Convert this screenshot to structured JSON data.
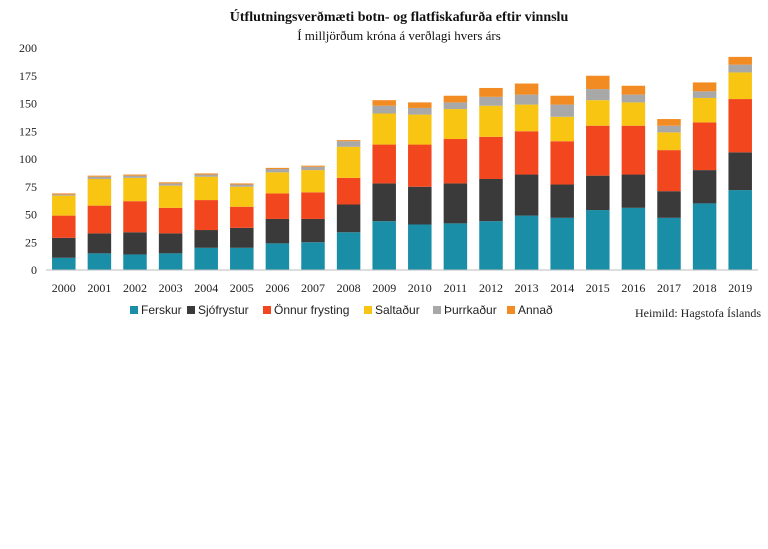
{
  "chart_data": {
    "type": "bar",
    "stacked": true,
    "title": "Útflutningsverðmæti botn- og flatfiskafurða eftir vinnslu",
    "subtitle": "Í milljörðum króna á verðlagi hvers árs",
    "source": "Heimild:  Hagstofa Íslands",
    "ylim": [
      0,
      200
    ],
    "yticks": [
      0,
      25,
      50,
      75,
      100,
      125,
      150,
      175,
      200
    ],
    "grid": false,
    "legend_position": "bottom",
    "categories": [
      "2000",
      "2001",
      "2002",
      "2003",
      "2004",
      "2005",
      "2006",
      "2007",
      "2008",
      "2009",
      "2010",
      "2011",
      "2012",
      "2013",
      "2014",
      "2015",
      "2016",
      "2017",
      "2018",
      "2019"
    ],
    "series": [
      {
        "name": "Ferskur",
        "color": "#1a8ea6",
        "values": [
          11,
          15,
          14,
          15,
          20,
          20,
          24,
          25,
          34,
          44,
          41,
          42,
          44,
          49,
          47,
          54,
          56,
          47,
          60,
          72
        ]
      },
      {
        "name": "Sjófrystur",
        "color": "#3a3a3a",
        "values": [
          18,
          18,
          20,
          18,
          16,
          18,
          22,
          21,
          25,
          34,
          34,
          36,
          38,
          37,
          30,
          31,
          30,
          24,
          30,
          34
        ]
      },
      {
        "name": "Önnur frysting",
        "color": "#f2461e",
        "values": [
          20,
          25,
          28,
          23,
          27,
          19,
          23,
          24,
          24,
          35,
          38,
          40,
          38,
          39,
          39,
          45,
          44,
          37,
          43,
          48
        ]
      },
      {
        "name": "Saltaður",
        "color": "#f8c513",
        "values": [
          18,
          24,
          21,
          20,
          21,
          18,
          19,
          20,
          28,
          28,
          27,
          27,
          28,
          24,
          22,
          23,
          21,
          16,
          22,
          24
        ]
      },
      {
        "name": "Þurrkaður",
        "color": "#a8a8a8",
        "values": [
          1,
          2,
          2,
          2,
          2,
          2,
          3,
          3,
          5,
          7,
          6,
          6,
          8,
          9,
          11,
          10,
          7,
          6,
          6,
          7
        ]
      },
      {
        "name": "Annað",
        "color": "#f28c22",
        "values": [
          1,
          1,
          1,
          1,
          1,
          1,
          1,
          1,
          1,
          5,
          5,
          6,
          8,
          10,
          8,
          12,
          8,
          6,
          8,
          7
        ]
      }
    ]
  }
}
